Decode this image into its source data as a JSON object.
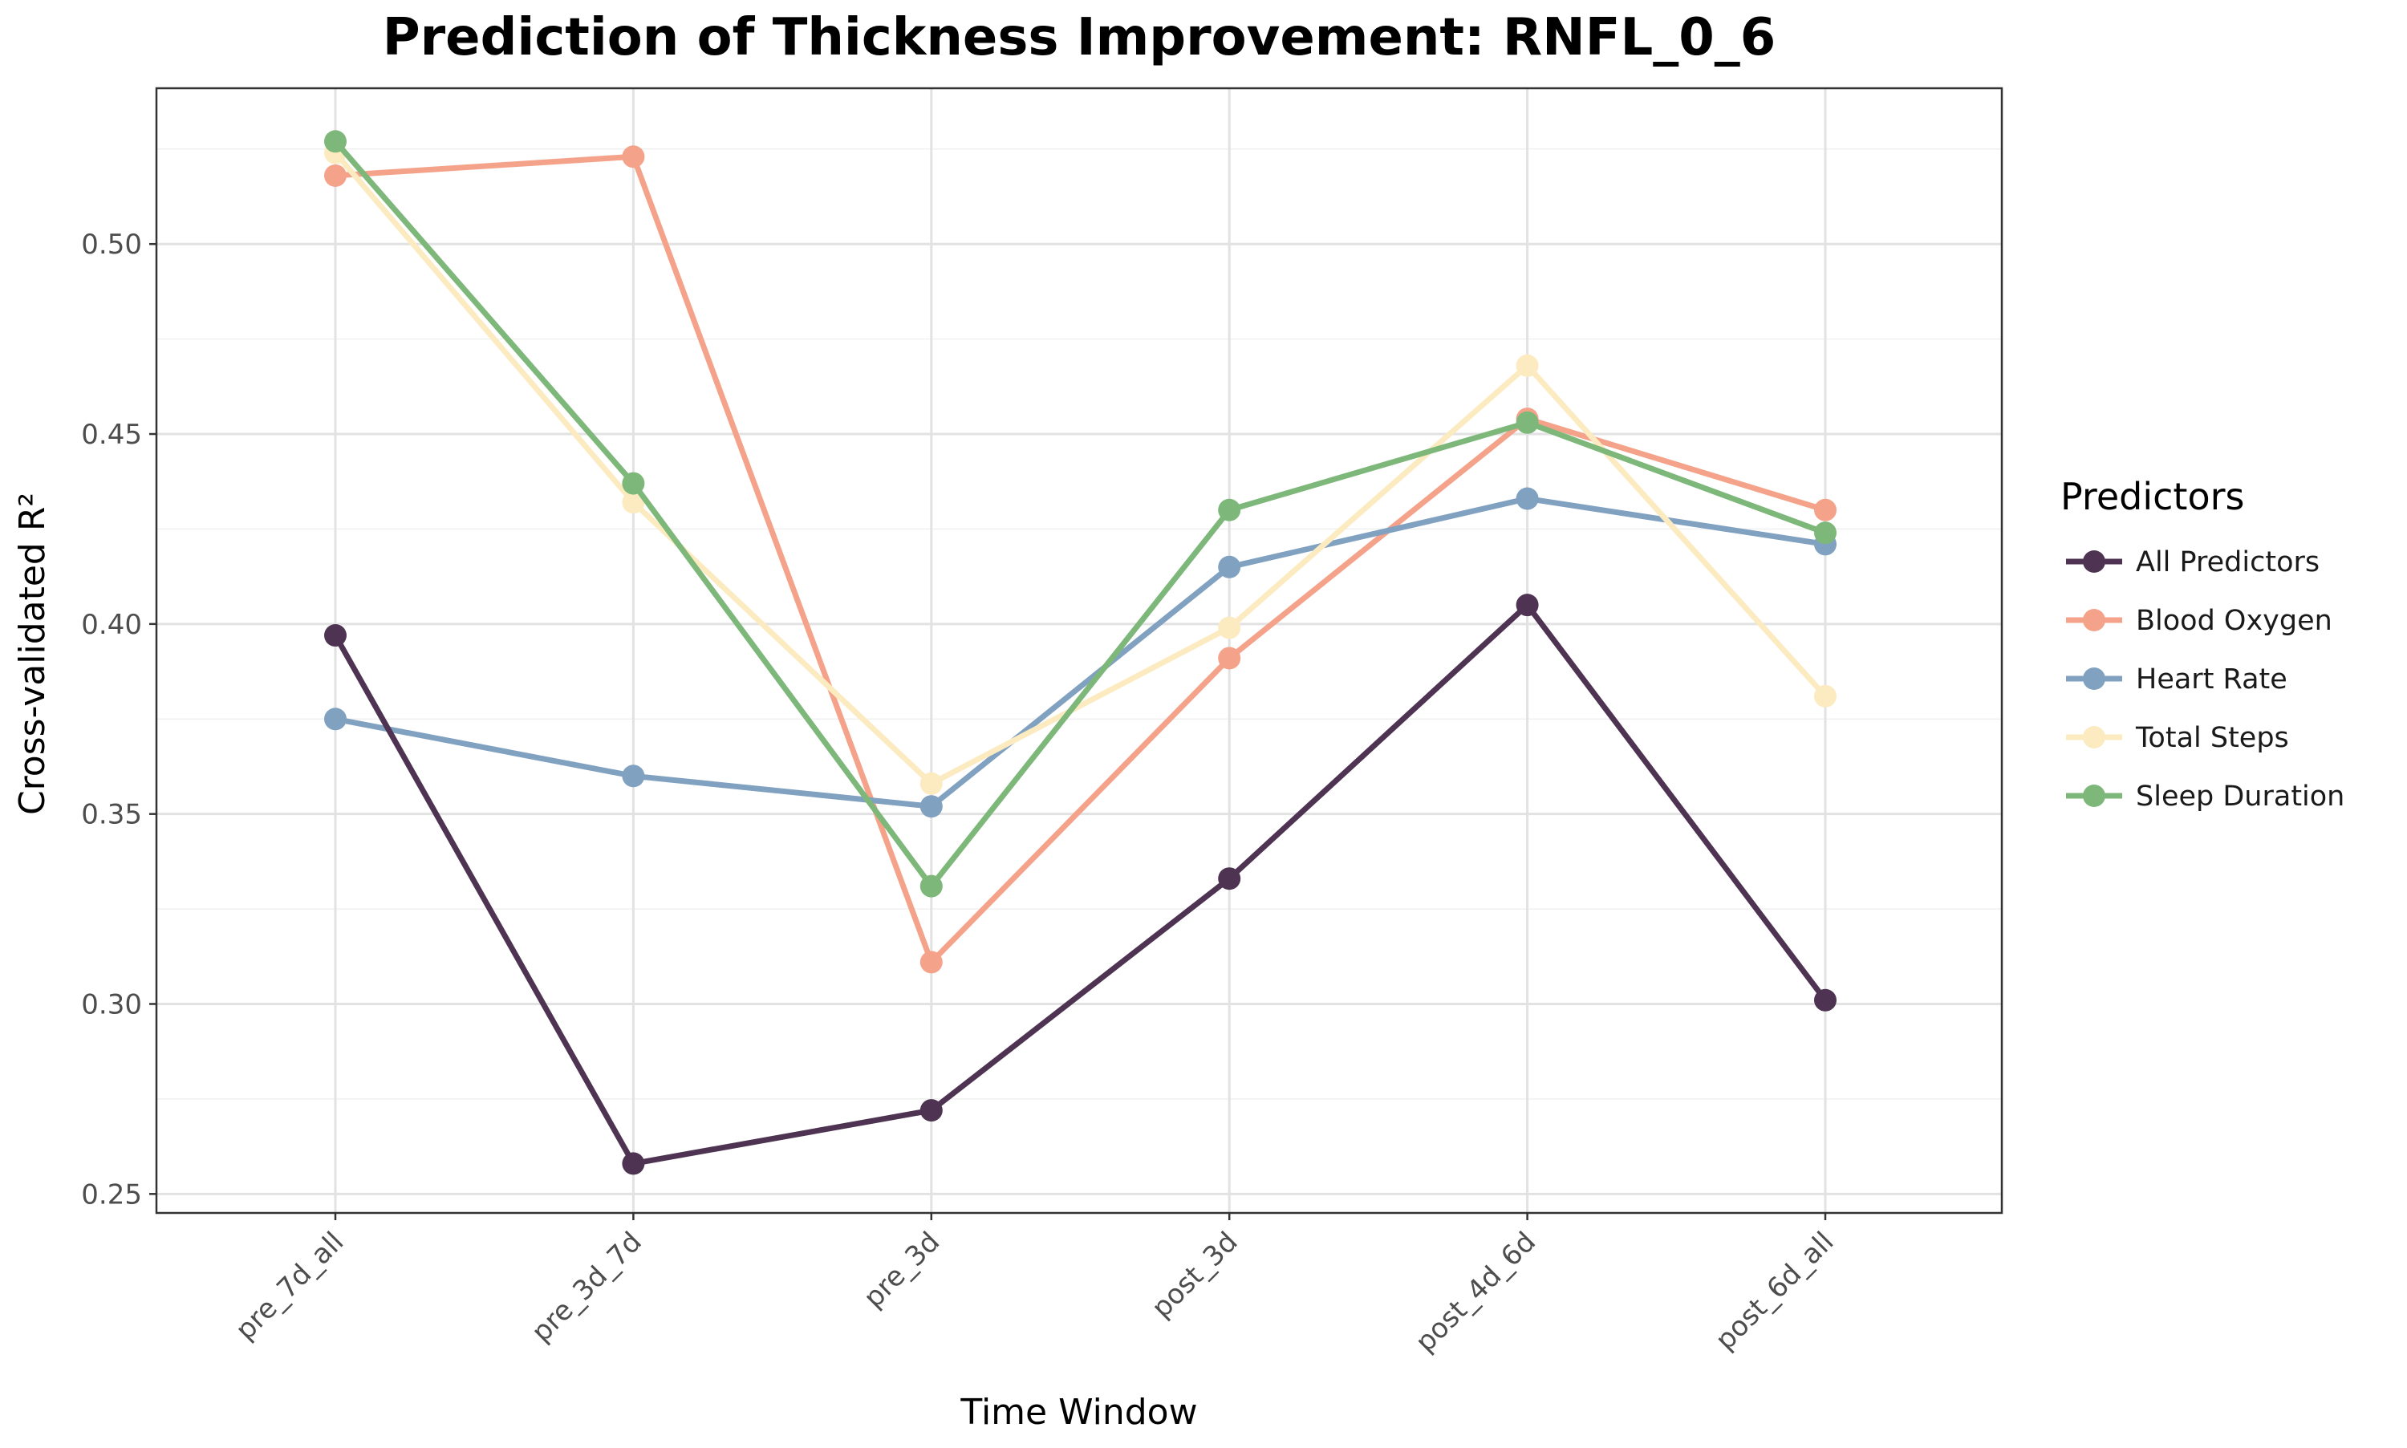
{
  "chart_data": {
    "type": "line",
    "title": "Prediction of Thickness Improvement: RNFL_0_6",
    "xlabel": "Time Window",
    "ylabel": "Cross-validated R²",
    "categories": [
      "pre_7d_all",
      "pre_3d_7d",
      "pre_3d",
      "post_3d",
      "post_4d_6d",
      "post_6d_all"
    ],
    "ylim": [
      0.245,
      0.541
    ],
    "yticks": [
      0.25,
      0.3,
      0.35,
      0.4,
      0.45,
      0.5
    ],
    "ytick_labels": [
      "0.25",
      "0.30",
      "0.35",
      "0.40",
      "0.45",
      "0.50"
    ],
    "grid": true,
    "legend": {
      "title": "Predictors",
      "placement": "right"
    },
    "series": [
      {
        "name": "Blood Oxygen",
        "color": "#F4A38A",
        "values": [
          0.518,
          0.523,
          0.311,
          0.391,
          0.454,
          0.43
        ]
      },
      {
        "name": "Heart Rate",
        "color": "#81A1C1",
        "values": [
          0.375,
          0.36,
          0.352,
          0.415,
          0.433,
          0.421
        ]
      },
      {
        "name": "Total Steps",
        "color": "#FCEBC0",
        "values": [
          0.524,
          0.432,
          0.358,
          0.399,
          0.468,
          0.381
        ]
      },
      {
        "name": "Sleep Duration",
        "color": "#7DB87A",
        "values": [
          0.527,
          0.437,
          0.331,
          0.43,
          0.453,
          0.424
        ]
      },
      {
        "name": "All Predictors",
        "color": "#4E3452",
        "values": [
          0.397,
          0.258,
          0.272,
          0.333,
          0.405,
          0.301
        ]
      }
    ],
    "legend_order": [
      "All Predictors",
      "Blood Oxygen",
      "Heart Rate",
      "Total Steps",
      "Sleep Duration"
    ]
  }
}
